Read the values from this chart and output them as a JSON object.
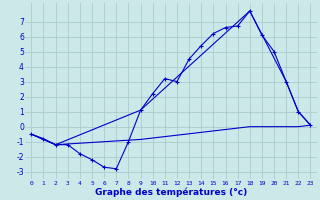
{
  "xlabel": "Graphe des températures (°c)",
  "bg_color": "#cce8e8",
  "grid_color": "#aacccc",
  "line_color": "#0000cc",
  "x_ticks": [
    0,
    1,
    2,
    3,
    4,
    5,
    6,
    7,
    8,
    9,
    10,
    11,
    12,
    13,
    14,
    15,
    16,
    17,
    18,
    19,
    20,
    21,
    22,
    23
  ],
  "ylim": [
    -3.5,
    8.2
  ],
  "xlim": [
    -0.5,
    23.5
  ],
  "yticks": [
    -3,
    -2,
    -1,
    0,
    1,
    2,
    3,
    4,
    5,
    6,
    7
  ],
  "line1_x": [
    0,
    1,
    2,
    3,
    4,
    5,
    6,
    7,
    8,
    9,
    10,
    11,
    12,
    13,
    14,
    15,
    16,
    17,
    18,
    19,
    20,
    21,
    22,
    23
  ],
  "line1_y": [
    -0.5,
    -0.8,
    -1.2,
    -1.2,
    -1.8,
    -2.2,
    -2.7,
    -2.8,
    -1.0,
    1.1,
    2.2,
    3.2,
    3.0,
    4.5,
    5.4,
    6.2,
    6.6,
    6.7,
    7.7,
    6.1,
    5.0,
    3.0,
    1.0,
    0.1
  ],
  "line2_x": [
    0,
    2,
    9,
    18,
    21,
    22,
    23
  ],
  "line2_y": [
    -0.5,
    -1.2,
    1.1,
    7.7,
    3.0,
    1.0,
    0.1
  ],
  "line3_x": [
    0,
    2,
    9,
    18,
    21,
    22,
    23
  ],
  "line3_y": [
    -0.5,
    -1.2,
    -0.85,
    0.0,
    0.0,
    0.0,
    0.1
  ]
}
